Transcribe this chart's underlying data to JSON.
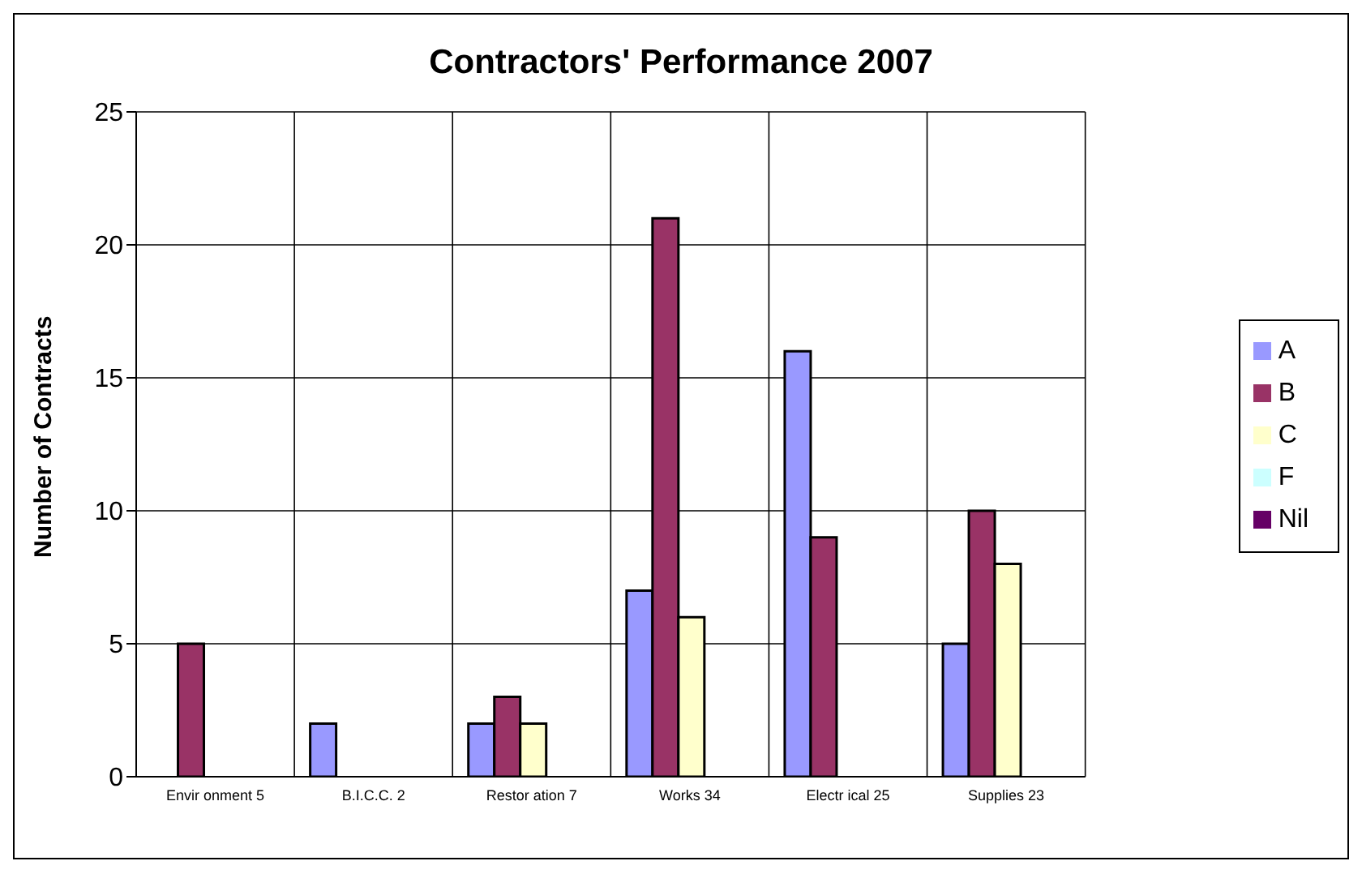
{
  "chart_data": {
    "type": "bar",
    "title": "Contractors' Performance 2007",
    "ylabel": "Number of  Contracts",
    "categories": [
      "Envir onment 5",
      "B.I.C.C. 2",
      "Restor ation 7",
      "Works 34",
      "Electr ical 25",
      "Supplies 23"
    ],
    "series": [
      {
        "name": "A",
        "color": "#9999ff",
        "values": [
          0,
          2,
          2,
          7,
          16,
          5
        ]
      },
      {
        "name": "B",
        "color": "#993366",
        "values": [
          5,
          0,
          3,
          21,
          9,
          10
        ]
      },
      {
        "name": "C",
        "color": "#ffffcc",
        "values": [
          0,
          0,
          2,
          6,
          0,
          8
        ]
      },
      {
        "name": "F",
        "color": "#ccffff",
        "values": [
          0,
          0,
          0,
          0,
          0,
          0
        ]
      },
      {
        "name": "Nil",
        "color": "#660066",
        "values": [
          0,
          0,
          0,
          0,
          0,
          0
        ]
      }
    ],
    "ylim": [
      0,
      25
    ],
    "yticks": [
      0,
      5,
      10,
      15,
      20,
      25
    ],
    "grid": true,
    "legend": "right"
  }
}
